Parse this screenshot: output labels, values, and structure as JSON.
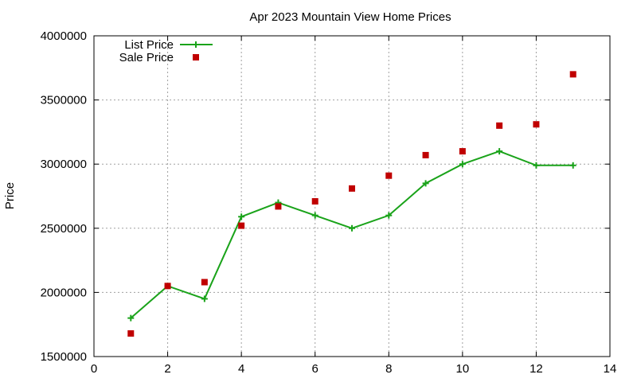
{
  "chart_data": {
    "type": "line",
    "title": "Apr 2023 Mountain View Home Prices",
    "xlabel": "",
    "ylabel": "Price",
    "xlim": [
      0,
      14
    ],
    "ylim": [
      1500000,
      4000000
    ],
    "x_ticks": [
      0,
      2,
      4,
      6,
      8,
      10,
      12,
      14
    ],
    "y_ticks": [
      1500000,
      2000000,
      2500000,
      3000000,
      3500000,
      4000000
    ],
    "x_tick_labels": [
      "0",
      "2",
      "4",
      "6",
      "8",
      "10",
      "12",
      "14"
    ],
    "y_tick_labels": [
      "1500000",
      "2000000",
      "2500000",
      "3000000",
      "3500000",
      "4000000"
    ],
    "grid": true,
    "legend_position": "top-left",
    "series": [
      {
        "name": "List Price",
        "style": "line-plus",
        "color": "#1aa31a",
        "x": [
          1,
          2,
          3,
          4,
          5,
          6,
          7,
          8,
          9,
          10,
          11,
          12,
          13
        ],
        "values": [
          1800000,
          2050000,
          1950000,
          2590000,
          2700000,
          2600000,
          2500000,
          2600000,
          2850000,
          3000000,
          3100000,
          2990000,
          2990000
        ]
      },
      {
        "name": "Sale Price",
        "style": "square-points",
        "color": "#c00000",
        "x": [
          1,
          2,
          3,
          4,
          5,
          6,
          7,
          8,
          9,
          10,
          11,
          12,
          13
        ],
        "values": [
          1680000,
          2050000,
          2080000,
          2520000,
          2670000,
          2710000,
          2810000,
          2910000,
          3070000,
          3100000,
          3300000,
          3310000,
          3700000
        ]
      }
    ]
  }
}
